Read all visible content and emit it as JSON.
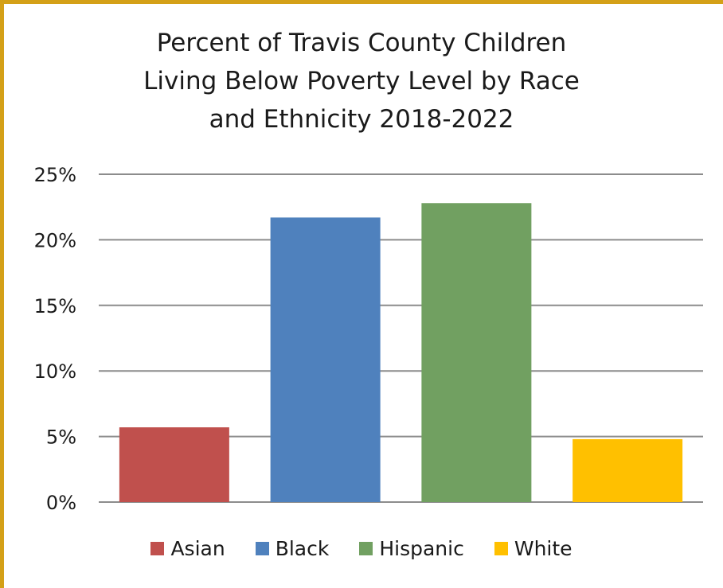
{
  "chart_data": {
    "type": "bar",
    "title_lines": [
      "Percent of Travis County Children",
      "Living Below Poverty Level by Race",
      "and Ethnicity 2018-2022"
    ],
    "categories": [
      "Asian",
      "Black",
      "Hispanic",
      "White"
    ],
    "values": [
      5.7,
      21.7,
      22.8,
      4.8
    ],
    "colors": [
      "#c0504d",
      "#4f81bd",
      "#71a061",
      "#ffc000"
    ],
    "ylim": [
      0,
      25
    ],
    "yticks": [
      0,
      5,
      10,
      15,
      20,
      25
    ],
    "ytick_labels": [
      "0%",
      "5%",
      "10%",
      "15%",
      "20%",
      "25%"
    ],
    "grid": true,
    "legend_position": "bottom",
    "xlabel": "",
    "ylabel": ""
  }
}
